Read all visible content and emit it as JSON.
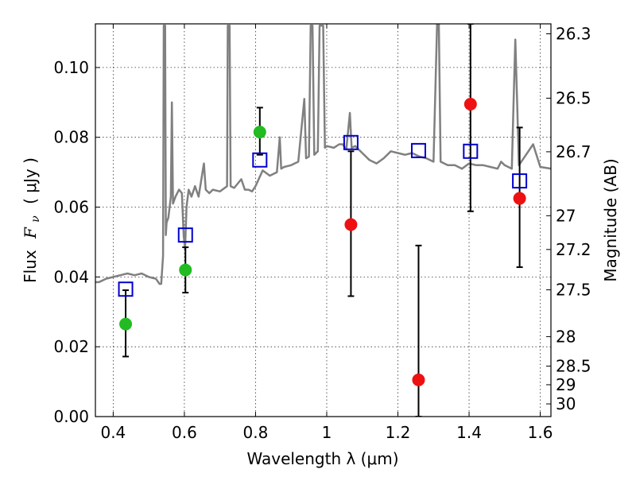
{
  "chart_data": {
    "type": "scatter",
    "title": "",
    "xlabel": "Wavelength  λ (μm)",
    "ylabel_text": "Flux",
    "ylabel_symbol": "F",
    "ylabel_subscript": "ν",
    "ylabel_unit": "( μJy )",
    "y2label": "Magnitude (AB)",
    "xlim": [
      0.35,
      1.63
    ],
    "ylim": [
      0.0,
      0.1125
    ],
    "grid": true,
    "legend": "none",
    "xticks": [
      {
        "value": 0.4,
        "label": "0.4"
      },
      {
        "value": 0.6,
        "label": "0.6"
      },
      {
        "value": 0.8,
        "label": "0.8"
      },
      {
        "value": 1.0,
        "label": "1"
      },
      {
        "value": 1.2,
        "label": "1.2"
      },
      {
        "value": 1.4,
        "label": "1.4"
      },
      {
        "value": 1.6,
        "label": "1.6"
      }
    ],
    "yticks": [
      {
        "value": 0.0,
        "label": "0.00"
      },
      {
        "value": 0.02,
        "label": "0.02"
      },
      {
        "value": 0.04,
        "label": "0.04"
      },
      {
        "value": 0.06,
        "label": "0.06"
      },
      {
        "value": 0.08,
        "label": "0.08"
      },
      {
        "value": 0.1,
        "label": "0.10"
      }
    ],
    "y2ticks": [
      {
        "value": 26.3,
        "label": "26.3"
      },
      {
        "value": 26.5,
        "label": "26.5"
      },
      {
        "value": 26.7,
        "label": "26.7"
      },
      {
        "value": 27.0,
        "label": "27"
      },
      {
        "value": 27.2,
        "label": "27.2"
      },
      {
        "value": 27.5,
        "label": "27.5"
      },
      {
        "value": 28.0,
        "label": "28"
      },
      {
        "value": 28.5,
        "label": "28.5"
      },
      {
        "value": 29.0,
        "label": "29"
      },
      {
        "value": 30.0,
        "label": "30"
      }
    ],
    "colors": {
      "model": "#808080",
      "model_points": "#0000cc",
      "green_points": "#22bb22",
      "red_points": "#ee1111",
      "errorbars": "#000000"
    },
    "model_spectrum": [
      [
        0.35,
        0.0385
      ],
      [
        0.36,
        0.0385
      ],
      [
        0.37,
        0.039
      ],
      [
        0.38,
        0.0395
      ],
      [
        0.4,
        0.04
      ],
      [
        0.42,
        0.0405
      ],
      [
        0.44,
        0.041
      ],
      [
        0.46,
        0.0405
      ],
      [
        0.48,
        0.041
      ],
      [
        0.5,
        0.04
      ],
      [
        0.52,
        0.0395
      ],
      [
        0.53,
        0.038
      ],
      [
        0.535,
        0.038
      ],
      [
        0.54,
        0.046
      ],
      [
        0.542,
        0.112
      ],
      [
        0.546,
        0.112
      ],
      [
        0.548,
        0.052
      ],
      [
        0.55,
        0.0555
      ],
      [
        0.555,
        0.057
      ],
      [
        0.562,
        0.063
      ],
      [
        0.565,
        0.09
      ],
      [
        0.568,
        0.061
      ],
      [
        0.575,
        0.063
      ],
      [
        0.585,
        0.065
      ],
      [
        0.593,
        0.064
      ],
      [
        0.598,
        0.052
      ],
      [
        0.602,
        0.048
      ],
      [
        0.606,
        0.06
      ],
      [
        0.612,
        0.065
      ],
      [
        0.62,
        0.063
      ],
      [
        0.63,
        0.066
      ],
      [
        0.64,
        0.063
      ],
      [
        0.655,
        0.0725
      ],
      [
        0.66,
        0.065
      ],
      [
        0.67,
        0.064
      ],
      [
        0.68,
        0.065
      ],
      [
        0.7,
        0.0645
      ],
      [
        0.72,
        0.066
      ],
      [
        0.722,
        0.112
      ],
      [
        0.727,
        0.112
      ],
      [
        0.73,
        0.066
      ],
      [
        0.74,
        0.0655
      ],
      [
        0.76,
        0.068
      ],
      [
        0.77,
        0.065
      ],
      [
        0.78,
        0.065
      ],
      [
        0.79,
        0.0645
      ],
      [
        0.8,
        0.066
      ],
      [
        0.82,
        0.0705
      ],
      [
        0.84,
        0.069
      ],
      [
        0.86,
        0.07
      ],
      [
        0.868,
        0.08
      ],
      [
        0.872,
        0.071
      ],
      [
        0.88,
        0.0715
      ],
      [
        0.9,
        0.072
      ],
      [
        0.92,
        0.073
      ],
      [
        0.937,
        0.091
      ],
      [
        0.942,
        0.074
      ],
      [
        0.95,
        0.0745
      ],
      [
        0.955,
        0.112
      ],
      [
        0.96,
        0.112
      ],
      [
        0.965,
        0.075
      ],
      [
        0.975,
        0.076
      ],
      [
        0.98,
        0.112
      ],
      [
        0.99,
        0.112
      ],
      [
        0.995,
        0.077
      ],
      [
        1.0,
        0.0775
      ],
      [
        1.02,
        0.077
      ],
      [
        1.035,
        0.078
      ],
      [
        1.045,
        0.078
      ],
      [
        1.055,
        0.0765
      ],
      [
        1.065,
        0.087
      ],
      [
        1.07,
        0.077
      ],
      [
        1.08,
        0.0775
      ],
      [
        1.1,
        0.0755
      ],
      [
        1.12,
        0.0735
      ],
      [
        1.14,
        0.0725
      ],
      [
        1.16,
        0.074
      ],
      [
        1.18,
        0.076
      ],
      [
        1.2,
        0.0755
      ],
      [
        1.22,
        0.075
      ],
      [
        1.24,
        0.0755
      ],
      [
        1.26,
        0.0745
      ],
      [
        1.28,
        0.074
      ],
      [
        1.3,
        0.073
      ],
      [
        1.31,
        0.1125
      ],
      [
        1.315,
        0.1125
      ],
      [
        1.32,
        0.073
      ],
      [
        1.34,
        0.072
      ],
      [
        1.36,
        0.072
      ],
      [
        1.38,
        0.071
      ],
      [
        1.4,
        0.0725
      ],
      [
        1.42,
        0.072
      ],
      [
        1.44,
        0.072
      ],
      [
        1.46,
        0.0715
      ],
      [
        1.48,
        0.071
      ],
      [
        1.49,
        0.073
      ],
      [
        1.5,
        0.072
      ],
      [
        1.52,
        0.071
      ],
      [
        1.525,
        0.09
      ],
      [
        1.53,
        0.108
      ],
      [
        1.535,
        0.09
      ],
      [
        1.54,
        0.072
      ],
      [
        1.56,
        0.075
      ],
      [
        1.58,
        0.078
      ],
      [
        1.6,
        0.0715
      ],
      [
        1.63,
        0.071
      ]
    ],
    "model_points": [
      {
        "x": 0.435,
        "y": 0.0365
      },
      {
        "x": 0.603,
        "y": 0.052
      },
      {
        "x": 0.812,
        "y": 0.0735
      },
      {
        "x": 1.068,
        "y": 0.0785
      },
      {
        "x": 1.258,
        "y": 0.0762
      },
      {
        "x": 1.404,
        "y": 0.076
      },
      {
        "x": 1.542,
        "y": 0.0675
      }
    ],
    "green_points": [
      {
        "x": 0.435,
        "y": 0.0265,
        "yerr_low": 0.0172,
        "yerr_high": 0.0362
      },
      {
        "x": 0.603,
        "y": 0.042,
        "yerr_low": 0.0355,
        "yerr_high": 0.0485
      },
      {
        "x": 0.812,
        "y": 0.0815,
        "yerr_low": 0.075,
        "yerr_high": 0.0885
      }
    ],
    "red_points": [
      {
        "x": 1.068,
        "y": 0.055,
        "yerr_low": 0.0345,
        "yerr_high": 0.076
      },
      {
        "x": 1.258,
        "y": 0.0105,
        "yerr_low": 0.0,
        "yerr_high": 0.049
      },
      {
        "x": 1.404,
        "y": 0.0895,
        "yerr_low": 0.0588,
        "yerr_high": 0.1125
      },
      {
        "x": 1.542,
        "y": 0.0625,
        "yerr_low": 0.0428,
        "yerr_high": 0.0828
      }
    ]
  }
}
